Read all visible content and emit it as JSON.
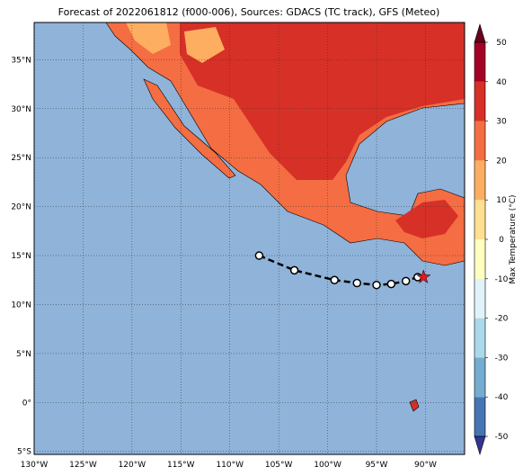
{
  "map": {
    "title": "Forecast of 2022061812 (f000-006), Sources: GDACS (TC track), GFS (Meteo)",
    "xlim": [
      -130,
      -86
    ],
    "ylim": [
      -5.3,
      38.8
    ],
    "xticks": [
      {
        "value": -130,
        "label": "130°W"
      },
      {
        "value": -125,
        "label": "125°W"
      },
      {
        "value": -120,
        "label": "120°W"
      },
      {
        "value": -115,
        "label": "115°W"
      },
      {
        "value": -110,
        "label": "110°W"
      },
      {
        "value": -105,
        "label": "105°W"
      },
      {
        "value": -100,
        "label": "100°W"
      },
      {
        "value": -95,
        "label": "95°W"
      },
      {
        "value": -90,
        "label": "90°W"
      }
    ],
    "yticks": [
      {
        "value": -5,
        "label": "5°S"
      },
      {
        "value": 0,
        "label": "0°"
      },
      {
        "value": 5,
        "label": "5°N"
      },
      {
        "value": 10,
        "label": "10°N"
      },
      {
        "value": 15,
        "label": "15°N"
      },
      {
        "value": 20,
        "label": "20°N"
      },
      {
        "value": 25,
        "label": "25°N"
      },
      {
        "value": 30,
        "label": "30°N"
      },
      {
        "value": 35,
        "label": "35°N"
      }
    ],
    "grid": true,
    "track": {
      "lon": [
        -107.0,
        -103.4,
        -99.3,
        -97.0,
        -95.0,
        -93.5,
        -92.0,
        -90.8
      ],
      "lat": [
        15.0,
        13.5,
        12.5,
        12.2,
        12.0,
        12.1,
        12.4,
        12.8
      ],
      "current": {
        "lon": -90.2,
        "lat": 12.8,
        "color": "#e41a1c"
      }
    },
    "colorbar": {
      "label": "Max Temperature (°C)",
      "lim": [
        -50,
        50
      ],
      "ticks": [
        -50,
        -40,
        -30,
        -20,
        -10,
        0,
        10,
        20,
        30,
        40,
        50
      ],
      "colors": [
        "#313695",
        "#4575b4",
        "#74add1",
        "#abd9e9",
        "#e0f3f8",
        "#ffffbf",
        "#fee090",
        "#fdae61",
        "#f46d43",
        "#d73027",
        "#a50026",
        "#67001f"
      ]
    }
  }
}
